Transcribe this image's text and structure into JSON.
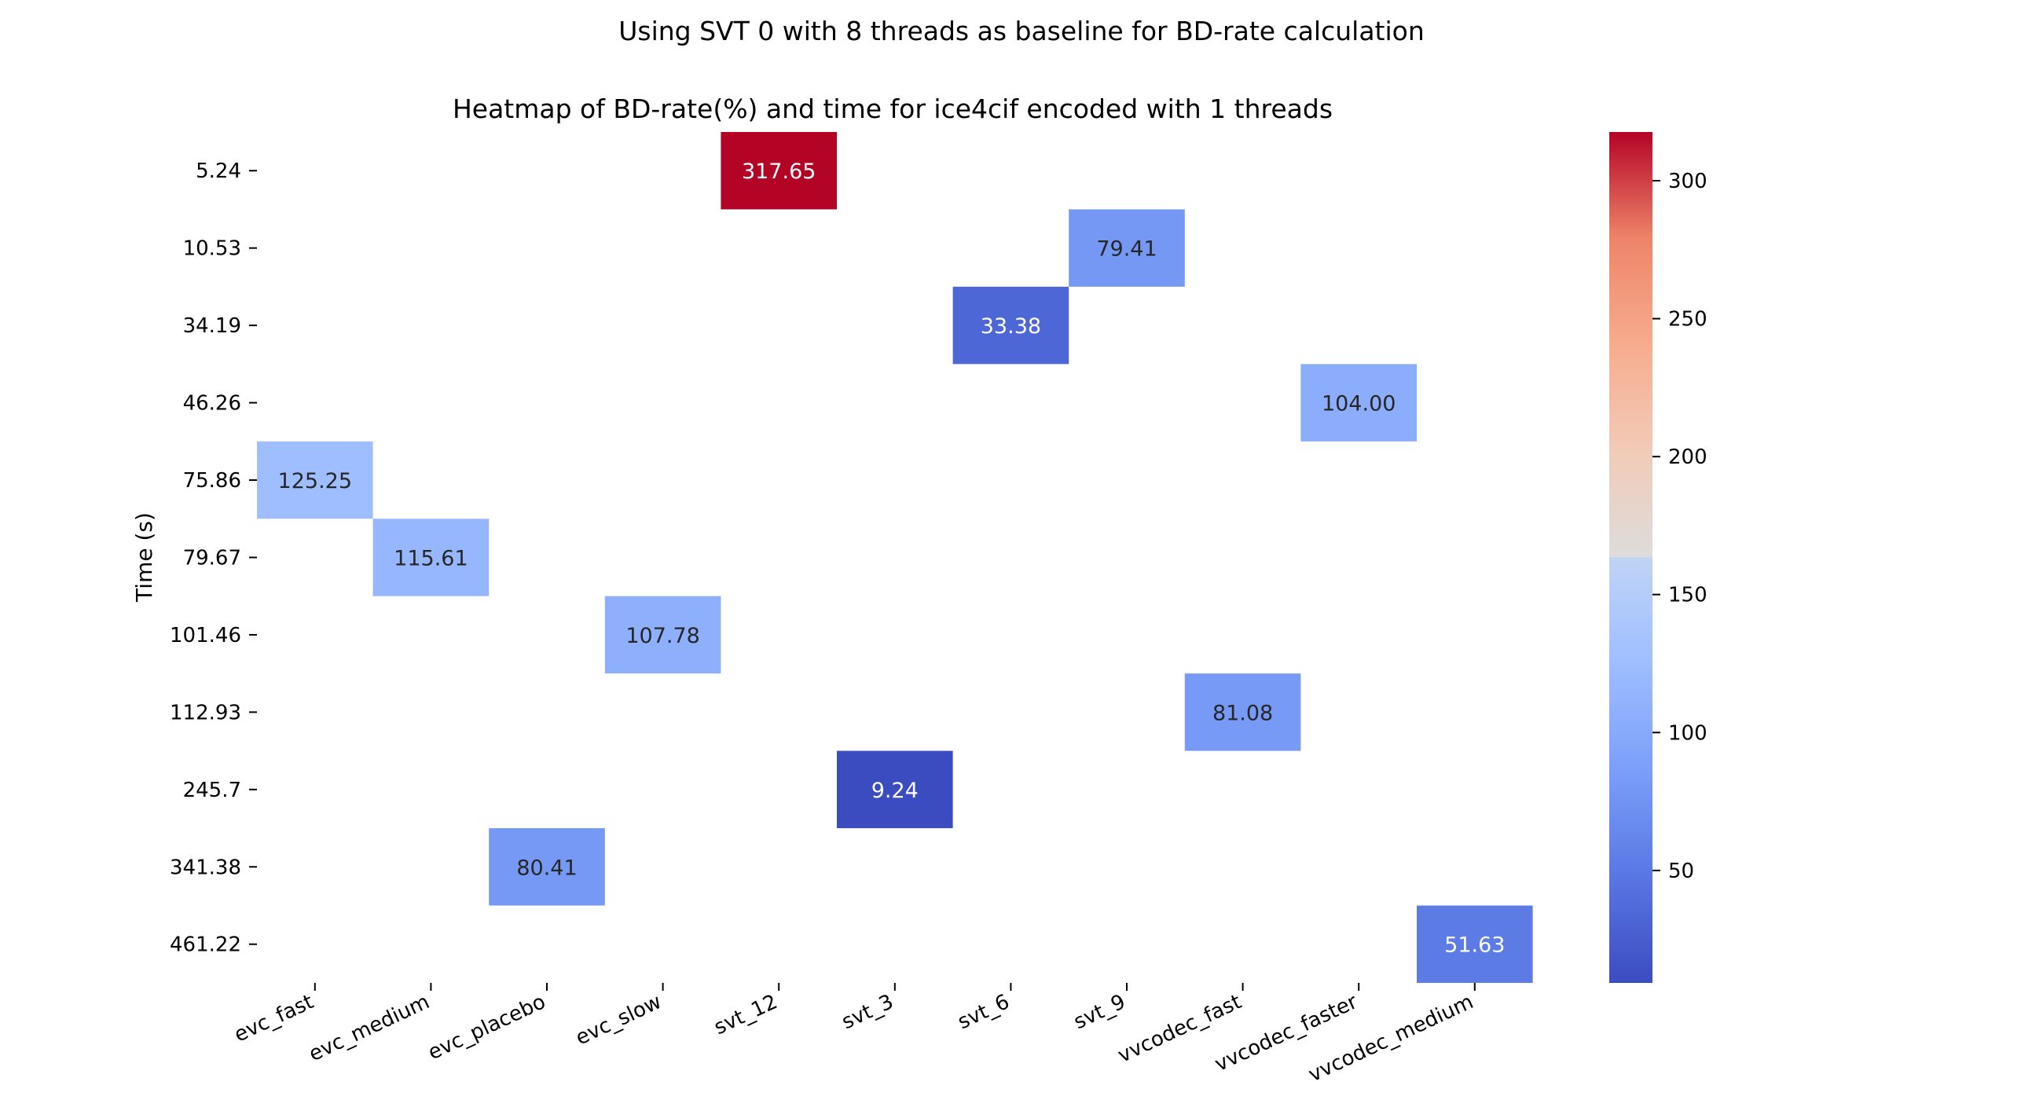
{
  "suptitle": "Using SVT 0 with 8 threads as baseline for BD-rate calculation",
  "chart_data": {
    "type": "heatmap",
    "title": "Heatmap of BD-rate(%) and time for ice4cif encoded with 1 threads",
    "xlabel": "",
    "ylabel": "Time (s)",
    "colormap": "coolwarm",
    "color_range": [
      9.24,
      317.65
    ],
    "colorbar_ticks": [
      50,
      100,
      150,
      200,
      250,
      300
    ],
    "x_categories": [
      "evc_fast",
      "evc_medium",
      "evc_placebo",
      "evc_slow",
      "svt_12",
      "svt_3",
      "svt_6",
      "svt_9",
      "vvcodec_fast",
      "vvcodec_faster",
      "vvcodec_medium"
    ],
    "y_categories": [
      "5.24",
      "10.53",
      "34.19",
      "46.26",
      "75.86",
      "79.67",
      "101.46",
      "112.93",
      "245.7",
      "341.38",
      "461.22"
    ],
    "cells": [
      {
        "x": "svt_12",
        "y": "5.24",
        "value": 317.65,
        "label": "317.65"
      },
      {
        "x": "svt_9",
        "y": "10.53",
        "value": 79.41,
        "label": "79.41"
      },
      {
        "x": "svt_6",
        "y": "34.19",
        "value": 33.38,
        "label": "33.38"
      },
      {
        "x": "vvcodec_faster",
        "y": "46.26",
        "value": 104.0,
        "label": "104.00"
      },
      {
        "x": "evc_fast",
        "y": "75.86",
        "value": 125.25,
        "label": "125.25"
      },
      {
        "x": "evc_medium",
        "y": "79.67",
        "value": 115.61,
        "label": "115.61"
      },
      {
        "x": "evc_slow",
        "y": "101.46",
        "value": 107.78,
        "label": "107.78"
      },
      {
        "x": "vvcodec_fast",
        "y": "112.93",
        "value": 81.08,
        "label": "81.08"
      },
      {
        "x": "svt_3",
        "y": "245.7",
        "value": 9.24,
        "label": "9.24"
      },
      {
        "x": "evc_placebo",
        "y": "341.38",
        "value": 80.41,
        "label": "80.41"
      },
      {
        "x": "vvcodec_medium",
        "y": "461.22",
        "value": 51.63,
        "label": "51.63"
      }
    ]
  }
}
